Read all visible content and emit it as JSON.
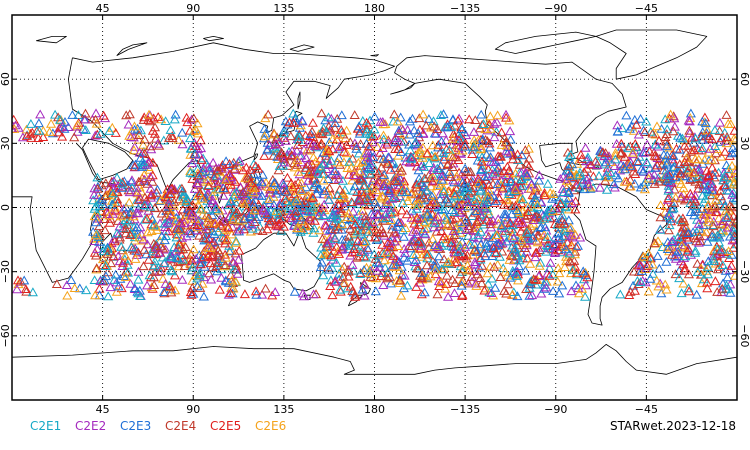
{
  "chart_data": {
    "type": "scatter",
    "projection": "equirectangular",
    "lon_center": 180,
    "lat_range": [
      -90,
      90
    ],
    "grid": "dotted",
    "marker": "open-triangle",
    "top_ticks": [
      "45",
      "90",
      "135",
      "180",
      "−135",
      "−90",
      "−45"
    ],
    "bottom_ticks": [
      "45",
      "90",
      "135",
      "180",
      "−135",
      "−90",
      "−45"
    ],
    "lat_ticks": [
      "60",
      "30",
      "0",
      "−30",
      "−60"
    ],
    "series": [
      {
        "name": "C2E1",
        "color": "#17a9c6"
      },
      {
        "name": "C2E2",
        "color": "#a52bbf"
      },
      {
        "name": "C2E3",
        "color": "#1f6fd6"
      },
      {
        "name": "C2E4",
        "color": "#c0392b"
      },
      {
        "name": "C2E5",
        "color": "#e0201e"
      },
      {
        "name": "C2E6",
        "color": "#f5a31b"
      }
    ],
    "product_label": "STARwet.2023-12-18"
  }
}
